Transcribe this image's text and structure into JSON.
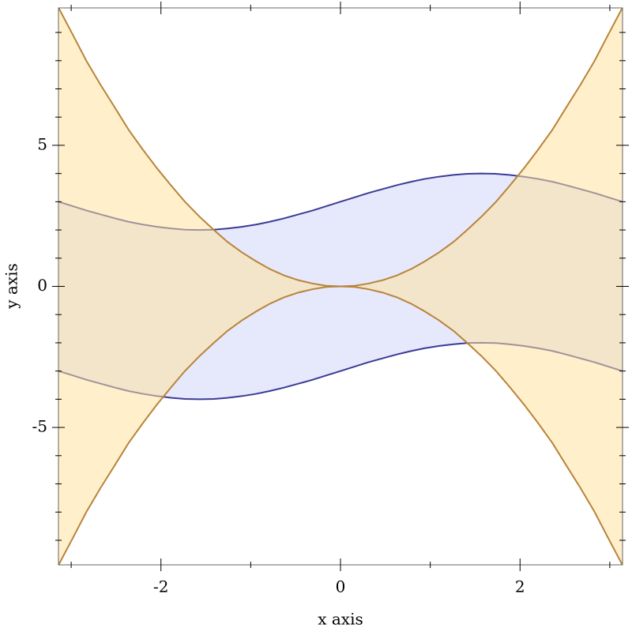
{
  "chart_data": {
    "type": "interval",
    "xlabel": "x axis",
    "ylabel": "y axis",
    "x": [
      -3.14,
      -2.98,
      -2.83,
      -2.67,
      -2.51,
      -2.36,
      -2.2,
      -2.04,
      -1.88,
      -1.73,
      -1.57,
      -1.41,
      -1.26,
      -1.1,
      -0.94,
      -0.79,
      -0.63,
      -0.47,
      -0.31,
      -0.16,
      0,
      0.16,
      0.31,
      0.47,
      0.63,
      0.79,
      0.94,
      1.1,
      1.26,
      1.41,
      1.57,
      1.73,
      1.88,
      2.04,
      2.2,
      2.36,
      2.51,
      2.67,
      2.83,
      2.98,
      3.14
    ],
    "intervals": [
      {
        "color": "#3b3b96",
        "fill": "#e6e8fc",
        "opacity": 1,
        "upper": [
          3,
          2.84,
          2.69,
          2.55,
          2.41,
          2.29,
          2.19,
          2.11,
          2.05,
          2.01,
          2,
          2.01,
          2.05,
          2.11,
          2.19,
          2.29,
          2.41,
          2.55,
          2.69,
          2.84,
          3,
          3.16,
          3.31,
          3.45,
          3.59,
          3.71,
          3.81,
          3.89,
          3.95,
          3.99,
          4,
          3.99,
          3.95,
          3.89,
          3.81,
          3.71,
          3.59,
          3.45,
          3.31,
          3.16,
          3
        ],
        "lower": [
          -3,
          -3.16,
          -3.31,
          -3.45,
          -3.59,
          -3.71,
          -3.81,
          -3.89,
          -3.95,
          -3.99,
          -4,
          -3.99,
          -3.95,
          -3.89,
          -3.81,
          -3.71,
          -3.59,
          -3.45,
          -3.31,
          -3.16,
          -3,
          -2.84,
          -2.69,
          -2.55,
          -2.41,
          -2.29,
          -2.19,
          -2.11,
          -2.05,
          -2.01,
          -2,
          -2.01,
          -2.05,
          -2.11,
          -2.19,
          -2.29,
          -2.41,
          -2.55,
          -2.69,
          -2.84,
          -3
        ]
      },
      {
        "color": "#b8843a",
        "fill": "#ffe39c",
        "opacity": 0.52,
        "upper": [
          9.87,
          8.91,
          7.99,
          7.13,
          6.32,
          5.55,
          4.84,
          4.17,
          3.55,
          2.99,
          2.47,
          2,
          1.58,
          1.21,
          0.89,
          0.62,
          0.39,
          0.22,
          0.1,
          0.02,
          0,
          0.02,
          0.1,
          0.22,
          0.39,
          0.62,
          0.89,
          1.21,
          1.58,
          2,
          2.47,
          2.99,
          3.55,
          4.17,
          4.84,
          5.55,
          6.32,
          7.13,
          7.99,
          8.91,
          9.87
        ],
        "lower": [
          -9.87,
          -8.91,
          -7.99,
          -7.13,
          -6.32,
          -5.55,
          -4.84,
          -4.17,
          -3.55,
          -2.99,
          -2.47,
          -2,
          -1.58,
          -1.21,
          -0.89,
          -0.62,
          -0.39,
          -0.22,
          -0.1,
          -0.02,
          0,
          -0.02,
          -0.1,
          -0.22,
          -0.39,
          -0.62,
          -0.89,
          -1.21,
          -1.58,
          -2,
          -2.47,
          -2.99,
          -3.55,
          -4.17,
          -4.84,
          -5.55,
          -6.32,
          -7.13,
          -7.99,
          -8.91,
          -9.87
        ]
      }
    ],
    "xlim": [
      -3.1416,
      3.1416
    ],
    "ylim": [
      -9.87,
      9.87
    ],
    "xticks": [
      -2,
      0,
      2
    ],
    "xminor_ticks": [
      -3,
      -1,
      1,
      3
    ],
    "yticks": [
      -5,
      0,
      5
    ],
    "yminor_ticks": [
      -9,
      -8,
      -7,
      -6,
      -4,
      -3,
      -2,
      -1,
      1,
      2,
      3,
      4,
      6,
      7,
      8,
      9
    ]
  }
}
